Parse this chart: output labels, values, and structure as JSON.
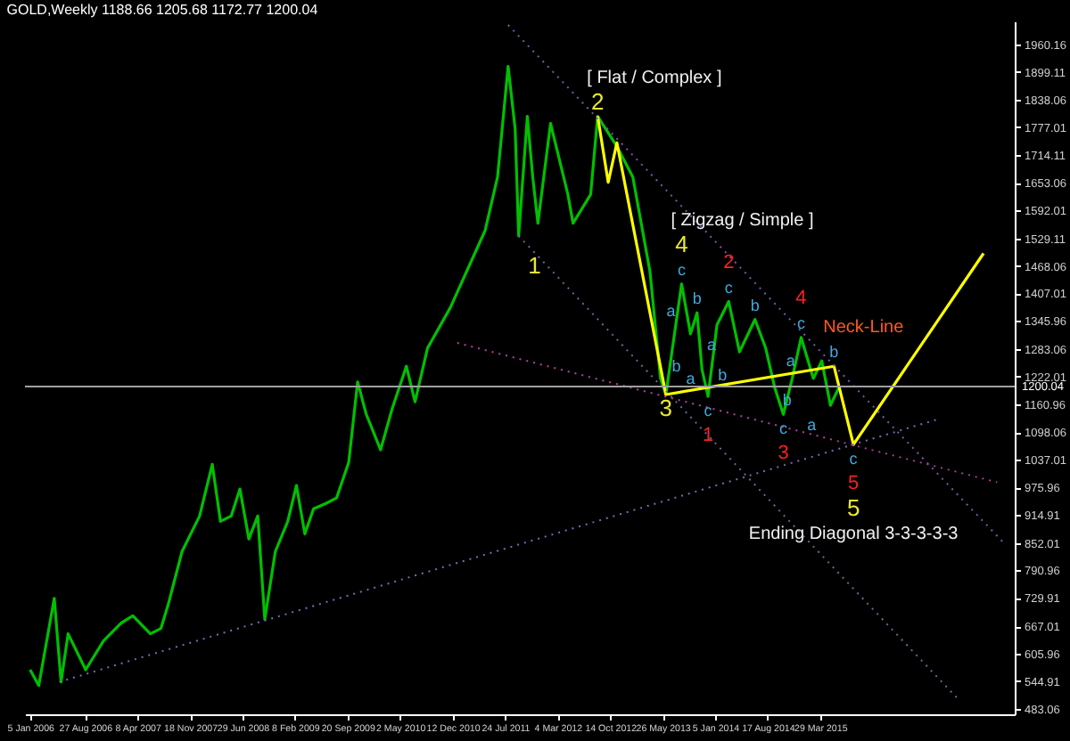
{
  "chart_data": {
    "type": "line",
    "title": "GOLD,Weekly  1188.66 1205.68 1172.77 1200.04",
    "grid": false,
    "marker": "none",
    "xlim": [
      "2005-12-14",
      "2017-07-06"
    ],
    "ylim": [
      471,
      2012
    ],
    "xticks": [
      {
        "value": "2006-01-05",
        "label": "5 Jan 2006"
      },
      {
        "value": "2006-08-27",
        "label": "27 Aug 2006"
      },
      {
        "value": "2007-04-08",
        "label": "8 Apr 2007"
      },
      {
        "value": "2007-11-18",
        "label": "18 Nov 2007"
      },
      {
        "value": "2008-06-29",
        "label": "29 Jun 2008"
      },
      {
        "value": "2009-02-08",
        "label": "8 Feb 2009"
      },
      {
        "value": "2009-09-20",
        "label": "20 Sep 2009"
      },
      {
        "value": "2010-05-02",
        "label": "2 May 2010"
      },
      {
        "value": "2010-12-12",
        "label": "12 Dec 2010"
      },
      {
        "value": "2011-07-24",
        "label": "24 Jul 2011"
      },
      {
        "value": "2012-03-04",
        "label": "4 Mar 2012"
      },
      {
        "value": "2012-10-14",
        "label": "14 Oct 2012"
      },
      {
        "value": "2013-05-26",
        "label": "26 May 2013"
      },
      {
        "value": "2014-01-05",
        "label": "5 Jan 2014"
      },
      {
        "value": "2014-08-17",
        "label": "17 Aug 2014"
      },
      {
        "value": "2015-03-29",
        "label": "29 Mar 2015"
      }
    ],
    "yticks": [
      1960.16,
      1899.11,
      1838.06,
      1777.01,
      1714.11,
      1653.06,
      1592.01,
      1529.11,
      1468.06,
      1407.01,
      1345.96,
      1283.06,
      1222.01,
      1160.96,
      1098.06,
      1037.01,
      975.96,
      914.91,
      852.01,
      790.96,
      729.91,
      667.01,
      605.96,
      544.91,
      483.06
    ],
    "ref_lines": [
      {
        "axis": "y",
        "value": 1200.04,
        "label": "1200.04",
        "color": "#a0a0a0"
      }
    ],
    "series": [
      {
        "color": "#00c000",
        "line_style": "solid",
        "x": [
          "2006-01-05",
          "2006-02-11",
          "2006-04-18",
          "2006-05-17",
          "2006-06-16",
          "2006-08-30",
          "2006-11-14",
          "2007-01-28",
          "2007-03-19",
          "2007-06-02",
          "2007-07-17",
          "2007-08-16",
          "2007-10-15",
          "2007-12-29",
          "2008-02-21",
          "2008-03-27",
          "2008-05-12",
          "2008-06-18",
          "2008-07-26",
          "2008-09-02",
          "2008-10-02",
          "2008-11-16",
          "2009-01-08",
          "2009-02-14",
          "2009-03-22",
          "2009-04-28",
          "2009-06-20",
          "2009-08-04",
          "2009-09-25",
          "2009-11-02",
          "2009-12-09",
          "2010-02-08",
          "2010-03-29",
          "2010-05-29",
          "2010-07-05",
          "2010-08-27",
          "2010-12-03",
          "2011-04-30",
          "2011-06-22",
          "2011-08-06",
          "2011-09-05",
          "2011-09-20",
          "2011-10-27",
          "2011-11-19",
          "2011-12-11",
          "2012-02-03",
          "2012-04-17",
          "2012-05-09",
          "2012-07-23",
          "2012-08-22",
          "2012-11-12",
          "2013-01-19",
          "2013-04-02",
          "2013-05-17",
          "2013-06-09",
          "2013-08-15",
          "2013-09-22",
          "2013-10-20",
          "2013-11-10",
          "2013-12-06",
          "2014-01-13",
          "2014-03-04",
          "2014-04-19",
          "2014-06-24",
          "2014-08-09",
          "2014-09-16",
          "2014-10-23",
          "2014-11-30",
          "2015-01-07",
          "2015-02-28",
          "2015-04-05",
          "2015-05-12",
          "2015-06-19"
        ],
        "values": [
          570,
          535,
          729,
          543,
          650,
          570,
          634,
          674,
          690,
          650,
          662,
          713,
          833,
          912,
          1027,
          900,
          912,
          972,
          861,
          912,
          682,
          833,
          900,
          980,
          872,
          928,
          940,
          952,
          1031,
          1210,
          1138,
          1059,
          1150,
          1245,
          1166,
          1285,
          1376,
          1547,
          1666,
          1912,
          1773,
          1535,
          1801,
          1666,
          1563,
          1785,
          1627,
          1563,
          1627,
          1801,
          1734,
          1666,
          1456,
          1218,
          1182,
          1428,
          1317,
          1364,
          1238,
          1178,
          1337,
          1389,
          1277,
          1349,
          1285,
          1198,
          1138,
          1218,
          1309,
          1218,
          1257,
          1158,
          1200
        ]
      },
      {
        "type": "line",
        "color": "#ffff00",
        "line_style": "solid",
        "x": [
          "2012-08-22",
          "2012-10-06",
          "2012-11-12",
          "2013-06-09",
          "2015-05-27",
          "2015-08-18",
          "2017-02-23"
        ],
        "values": [
          1801,
          1654,
          1742,
          1182,
          1245,
          1071,
          1496
        ]
      },
      {
        "type": "line",
        "color": "#7a5aa8",
        "line_style": "dotted",
        "x": [
          "2011-08-06",
          "2017-05-28"
        ],
        "values": [
          2004,
          848
        ]
      },
      {
        "type": "line",
        "color": "#7a6ab8",
        "line_style": "dotted",
        "x": [
          "2006-05-10",
          "2016-08-04"
        ],
        "values": [
          543,
          1126
        ]
      },
      {
        "type": "line",
        "color": "#b040a0",
        "line_style": "dotted",
        "x": [
          "2011-01-01",
          "2017-04-22"
        ],
        "values": [
          1297,
          987
        ]
      },
      {
        "type": "line",
        "color": "#6a6a9a",
        "line_style": "dotted",
        "x": [
          "2011-09-20",
          "2016-11-10"
        ],
        "values": [
          1535,
          503
        ]
      }
    ],
    "annotations": [
      {
        "text": "c",
        "x": "2013-08-15",
        "y": 1428
      },
      {
        "text": "a",
        "x": "2013-07-01",
        "y": 1368
      },
      {
        "text": "b",
        "x": "2013-10-20",
        "y": 1364
      },
      {
        "text": "c",
        "x": "2014-03-04",
        "y": 1389
      },
      {
        "text": "b",
        "x": "2014-06-24",
        "y": 1349
      },
      {
        "text": "c",
        "x": "2015-01-07",
        "y": 1309
      },
      {
        "text": "b",
        "x": "2015-05-27",
        "y": 1245
      },
      {
        "text": "b",
        "x": "2013-07-24",
        "y": 1245
      },
      {
        "text": "a",
        "x": "2013-09-22",
        "y": 1218
      },
      {
        "text": "b",
        "x": "2014-02-05",
        "y": 1226
      },
      {
        "text": "a",
        "x": "2013-12-21",
        "y": 1293
      },
      {
        "text": "c",
        "x": "2013-12-06",
        "y": 1178
      },
      {
        "text": "a",
        "x": "2014-11-23",
        "y": 1257
      },
      {
        "text": "b",
        "x": "2014-11-08",
        "y": 1170
      },
      {
        "text": "c",
        "x": "2014-10-23",
        "y": 1138
      },
      {
        "text": "a",
        "x": "2015-02-21",
        "y": 1114
      },
      {
        "text": "c",
        "x": "2015-08-18",
        "y": 1071
      },
      {
        "text": "2",
        "x": "2014-03-04",
        "y": 1389
      },
      {
        "text": "4",
        "x": "2015-01-07",
        "y": 1309
      },
      {
        "text": "1",
        "x": "2013-12-06",
        "y": 1178
      },
      {
        "text": "3",
        "x": "2014-10-23",
        "y": 1138
      },
      {
        "text": "5",
        "x": "2015-08-18",
        "y": 1071
      },
      {
        "text": "2",
        "x": "2012-08-22",
        "y": 1801
      },
      {
        "text": "[ Flat / Complex ]",
        "x": "2012-08-22",
        "y": 1801
      },
      {
        "text": "1",
        "x": "2011-11-27",
        "y": 1468
      },
      {
        "text": "4",
        "x": "2013-08-15",
        "y": 1428
      },
      "[ Zigzag / Simple ]",
      {
        "text": "3",
        "x": "2013-06-09",
        "y": 1182
      },
      {
        "text": "5",
        "x": "2015-08-18",
        "y": 1071
      },
      "Ending Diagonal 3-3-3-3-3",
      {
        "text": "Neck-Line",
        "x": "2015-05-27",
        "y": 1245
      }
    ]
  }
}
